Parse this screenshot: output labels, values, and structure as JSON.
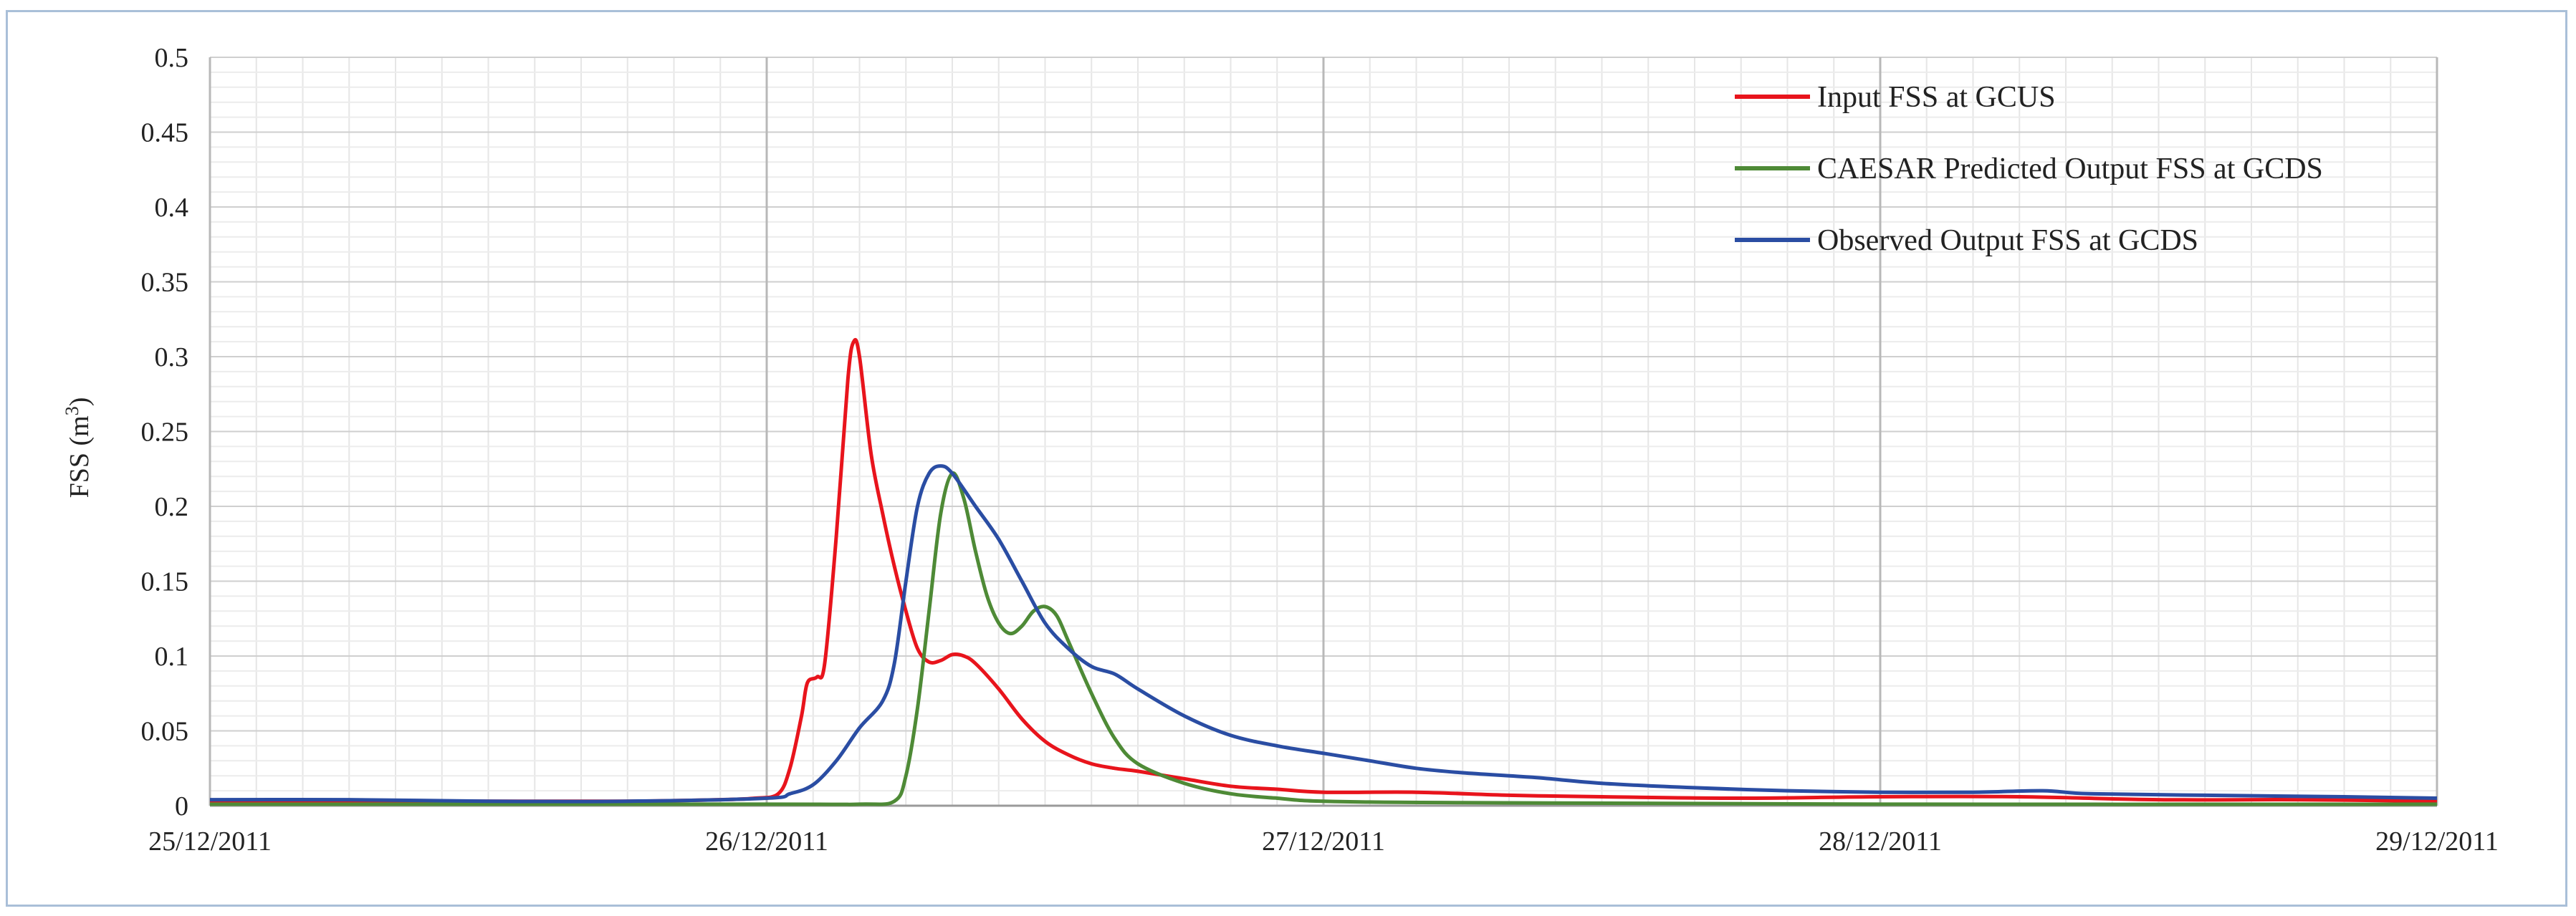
{
  "chart_data": {
    "type": "line",
    "title": "",
    "xlabel": "",
    "ylabel": "FSS (m",
    "ylabel_sup": "3",
    "ylabel_close": ")",
    "ylim": [
      0,
      0.5
    ],
    "yticks": [
      "0",
      "0.05",
      "0.1",
      "0.15",
      "0.2",
      "0.25",
      "0.3",
      "0.35",
      "0.4",
      "0.45",
      "0.5"
    ],
    "xlim": [
      "25/12/2011 00:00",
      "29/12/2011 00:00"
    ],
    "xticks": [
      "25/12/2011",
      "26/12/2011",
      "27/12/2011",
      "28/12/2011",
      "29/12/2011"
    ],
    "grid": true,
    "legend_position": "top-right",
    "series": [
      {
        "name": "Input FSS at GCUS",
        "color": "#e8141c",
        "points": [
          [
            "25/12/2011 00:00",
            0.003
          ],
          [
            "25/12/2011 06:00",
            0.003
          ],
          [
            "25/12/2011 12:00",
            0.003
          ],
          [
            "25/12/2011 18:00",
            0.003
          ],
          [
            "25/12/2011 22:00",
            0.004
          ],
          [
            "25/12/2011 23:30",
            0.005
          ],
          [
            "26/12/2011 00:30",
            0.008
          ],
          [
            "26/12/2011 01:00",
            0.025
          ],
          [
            "26/12/2011 01:30",
            0.06
          ],
          [
            "26/12/2011 01:45",
            0.082
          ],
          [
            "26/12/2011 02:10",
            0.086
          ],
          [
            "26/12/2011 02:30",
            0.095
          ],
          [
            "26/12/2011 03:00",
            0.18
          ],
          [
            "26/12/2011 03:30",
            0.285
          ],
          [
            "26/12/2011 03:45",
            0.31
          ],
          [
            "26/12/2011 04:00",
            0.3
          ],
          [
            "26/12/2011 04:30",
            0.235
          ],
          [
            "26/12/2011 05:00",
            0.195
          ],
          [
            "26/12/2011 05:30",
            0.16
          ],
          [
            "26/12/2011 06:00",
            0.13
          ],
          [
            "26/12/2011 06:30",
            0.105
          ],
          [
            "26/12/2011 07:00",
            0.096
          ],
          [
            "26/12/2011 07:30",
            0.097
          ],
          [
            "26/12/2011 08:00",
            0.101
          ],
          [
            "26/12/2011 08:30",
            0.1
          ],
          [
            "26/12/2011 09:00",
            0.095
          ],
          [
            "26/12/2011 10:00",
            0.078
          ],
          [
            "26/12/2011 11:00",
            0.058
          ],
          [
            "26/12/2011 12:00",
            0.043
          ],
          [
            "26/12/2011 13:00",
            0.034
          ],
          [
            "26/12/2011 14:00",
            0.028
          ],
          [
            "26/12/2011 15:00",
            0.025
          ],
          [
            "26/12/2011 16:00",
            0.023
          ],
          [
            "26/12/2011 18:00",
            0.018
          ],
          [
            "26/12/2011 20:00",
            0.013
          ],
          [
            "26/12/2011 22:00",
            0.011
          ],
          [
            "27/12/2011 00:00",
            0.009
          ],
          [
            "27/12/2011 04:00",
            0.009
          ],
          [
            "27/12/2011 08:00",
            0.007
          ],
          [
            "27/12/2011 12:00",
            0.006
          ],
          [
            "27/12/2011 18:00",
            0.005
          ],
          [
            "28/12/2011 00:00",
            0.006
          ],
          [
            "28/12/2011 06:00",
            0.006
          ],
          [
            "28/12/2011 12:00",
            0.004
          ],
          [
            "28/12/2011 18:00",
            0.004
          ],
          [
            "29/12/2011 00:00",
            0.003
          ]
        ]
      },
      {
        "name": "CAESAR Predicted Output FSS at GCDS",
        "color": "#4e8a36",
        "points": [
          [
            "25/12/2011 00:00",
            0.001
          ],
          [
            "26/12/2011 00:00",
            0.001
          ],
          [
            "26/12/2011 04:00",
            0.001
          ],
          [
            "26/12/2011 05:30",
            0.003
          ],
          [
            "26/12/2011 06:00",
            0.02
          ],
          [
            "26/12/2011 06:30",
            0.065
          ],
          [
            "26/12/2011 07:00",
            0.13
          ],
          [
            "26/12/2011 07:30",
            0.195
          ],
          [
            "26/12/2011 08:00",
            0.222
          ],
          [
            "26/12/2011 08:30",
            0.205
          ],
          [
            "26/12/2011 09:00",
            0.17
          ],
          [
            "26/12/2011 09:30",
            0.14
          ],
          [
            "26/12/2011 10:00",
            0.122
          ],
          [
            "26/12/2011 10:30",
            0.115
          ],
          [
            "26/12/2011 11:00",
            0.12
          ],
          [
            "26/12/2011 11:30",
            0.13
          ],
          [
            "26/12/2011 12:00",
            0.133
          ],
          [
            "26/12/2011 12:30",
            0.127
          ],
          [
            "26/12/2011 13:00",
            0.11
          ],
          [
            "26/12/2011 14:00",
            0.075
          ],
          [
            "26/12/2011 15:00",
            0.045
          ],
          [
            "26/12/2011 16:00",
            0.028
          ],
          [
            "26/12/2011 18:00",
            0.015
          ],
          [
            "26/12/2011 20:00",
            0.008
          ],
          [
            "26/12/2011 22:00",
            0.005
          ],
          [
            "27/12/2011 00:00",
            0.003
          ],
          [
            "27/12/2011 06:00",
            0.002
          ],
          [
            "28/12/2011 00:00",
            0.001
          ],
          [
            "29/12/2011 00:00",
            0.001
          ]
        ]
      },
      {
        "name": "Observed Output FSS at GCDS",
        "color": "#2a4da3",
        "points": [
          [
            "25/12/2011 00:00",
            0.004
          ],
          [
            "25/12/2011 06:00",
            0.004
          ],
          [
            "25/12/2011 12:00",
            0.003
          ],
          [
            "25/12/2011 18:00",
            0.003
          ],
          [
            "26/12/2011 00:00",
            0.005
          ],
          [
            "26/12/2011 01:00",
            0.008
          ],
          [
            "26/12/2011 02:00",
            0.014
          ],
          [
            "26/12/2011 03:00",
            0.03
          ],
          [
            "26/12/2011 04:00",
            0.052
          ],
          [
            "26/12/2011 05:00",
            0.07
          ],
          [
            "26/12/2011 05:30",
            0.095
          ],
          [
            "26/12/2011 06:00",
            0.15
          ],
          [
            "26/12/2011 06:30",
            0.2
          ],
          [
            "26/12/2011 07:00",
            0.222
          ],
          [
            "26/12/2011 07:30",
            0.227
          ],
          [
            "26/12/2011 08:00",
            0.222
          ],
          [
            "26/12/2011 09:00",
            0.2
          ],
          [
            "26/12/2011 10:00",
            0.178
          ],
          [
            "26/12/2011 11:00",
            0.15
          ],
          [
            "26/12/2011 12:00",
            0.122
          ],
          [
            "26/12/2011 13:00",
            0.105
          ],
          [
            "26/12/2011 14:00",
            0.093
          ],
          [
            "26/12/2011 15:00",
            0.088
          ],
          [
            "26/12/2011 16:00",
            0.078
          ],
          [
            "26/12/2011 18:00",
            0.06
          ],
          [
            "26/12/2011 20:00",
            0.047
          ],
          [
            "26/12/2011 22:00",
            0.04
          ],
          [
            "27/12/2011 00:00",
            0.035
          ],
          [
            "27/12/2011 02:00",
            0.03
          ],
          [
            "27/12/2011 04:00",
            0.025
          ],
          [
            "27/12/2011 06:00",
            0.022
          ],
          [
            "27/12/2011 09:00",
            0.019
          ],
          [
            "27/12/2011 12:00",
            0.015
          ],
          [
            "27/12/2011 16:00",
            0.012
          ],
          [
            "27/12/2011 20:00",
            0.01
          ],
          [
            "28/12/2011 00:00",
            0.009
          ],
          [
            "28/12/2011 04:00",
            0.009
          ],
          [
            "28/12/2011 07:00",
            0.01
          ],
          [
            "28/12/2011 09:00",
            0.008
          ],
          [
            "28/12/2011 14:00",
            0.007
          ],
          [
            "28/12/2011 20:00",
            0.006
          ],
          [
            "29/12/2011 00:00",
            0.005
          ]
        ]
      }
    ]
  }
}
